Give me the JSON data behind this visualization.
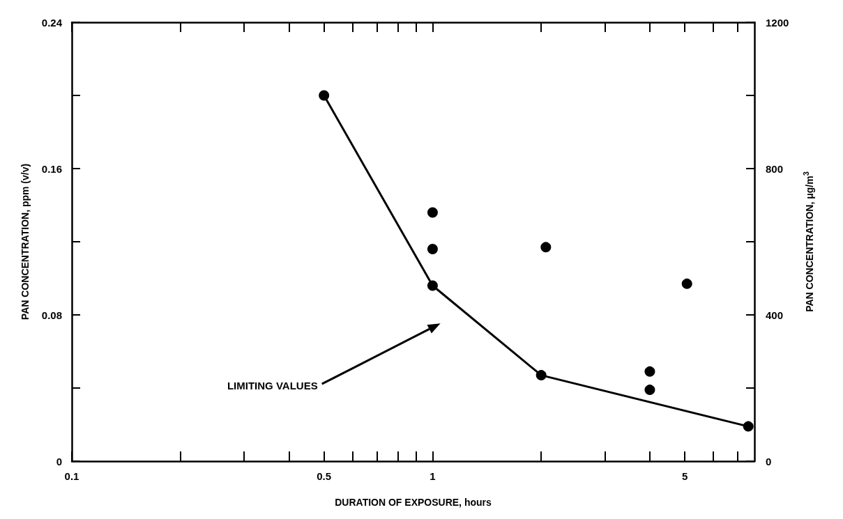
{
  "chart_data": {
    "type": "scatter",
    "xlabel": "DURATION OF EXPOSURE, hours",
    "ylabel": "PAN CONCENTRATION, ppm (v/v)",
    "y2label": "PAN CONCENTRATION, μg/m$^{3}$",
    "log": "x",
    "xlim": [
      0.1,
      7.8
    ],
    "xticks": [
      0.1,
      {
        "value": 0.2,
        "label": null
      },
      {
        "value": 0.3,
        "label": null
      },
      {
        "value": 0.4,
        "label": null
      },
      0.5,
      {
        "value": 0.6,
        "label": null
      },
      {
        "value": 0.7,
        "label": null
      },
      {
        "value": 0.8,
        "label": null
      },
      {
        "value": 0.9,
        "label": null
      },
      1,
      {
        "value": 2,
        "label": null
      },
      {
        "value": 3,
        "label": null
      },
      {
        "value": 4,
        "label": null
      },
      5,
      {
        "value": 6,
        "label": null
      },
      {
        "value": 7,
        "label": null
      }
    ],
    "ylim": [
      0,
      0.24
    ],
    "yticks": [
      0,
      {
        "value": 0.04,
        "label": null
      },
      0.08,
      {
        "value": 0.12,
        "label": null
      },
      0.16,
      {
        "value": 0.2,
        "label": null
      },
      0.24
    ],
    "y2lim": [
      0,
      1200
    ],
    "y2ticks": [
      0,
      {
        "value": 200,
        "label": null
      },
      400,
      {
        "value": 600,
        "label": null
      },
      800,
      {
        "value": 1000,
        "label": null
      },
      1200
    ],
    "marker": "circle",
    "grid": false,
    "series": [
      {
        "type": "line",
        "color": "#000000",
        "x": [
          0.5,
          1,
          2,
          7.5
        ],
        "values": [
          0.2,
          0.096,
          0.047,
          0.019
        ]
      },
      {
        "color": "#000000",
        "x": [
          1,
          1,
          2.06,
          4,
          4,
          5.07
        ],
        "values": [
          0.136,
          0.116,
          0.117,
          0.049,
          0.039,
          0.097
        ]
      }
    ],
    "annotations": [
      "LIMITING VALUES"
    ]
  }
}
